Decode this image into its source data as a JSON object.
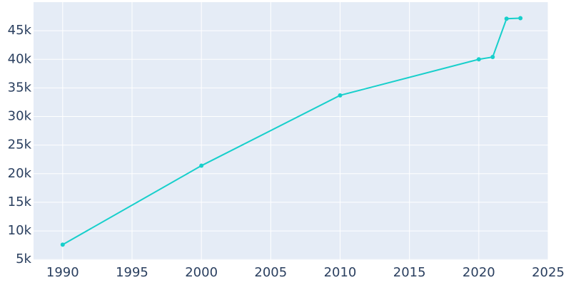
{
  "chart_data": {
    "type": "line",
    "x": [
      1990,
      2000,
      2010,
      2020,
      2021,
      2022,
      2023
    ],
    "series": [
      {
        "color": "#17cfcb",
        "values": [
          7600,
          21400,
          33700,
          40000,
          40400,
          47100,
          47200
        ]
      }
    ],
    "xlim": [
      1987.9,
      2025
    ],
    "xticks": [
      1990,
      1995,
      2000,
      2005,
      2010,
      2015,
      2020,
      2025
    ],
    "ylim": [
      4900,
      50000
    ],
    "yticks": [
      {
        "value": 5000,
        "label": "5k"
      },
      {
        "value": 10000,
        "label": "10k"
      },
      {
        "value": 15000,
        "label": "15k"
      },
      {
        "value": 20000,
        "label": "20k"
      },
      {
        "value": 25000,
        "label": "25k"
      },
      {
        "value": 30000,
        "label": "30k"
      },
      {
        "value": 35000,
        "label": "35k"
      },
      {
        "value": 40000,
        "label": "40k"
      },
      {
        "value": 45000,
        "label": "45k"
      }
    ],
    "grid": true,
    "background": "#e5ecf6"
  }
}
